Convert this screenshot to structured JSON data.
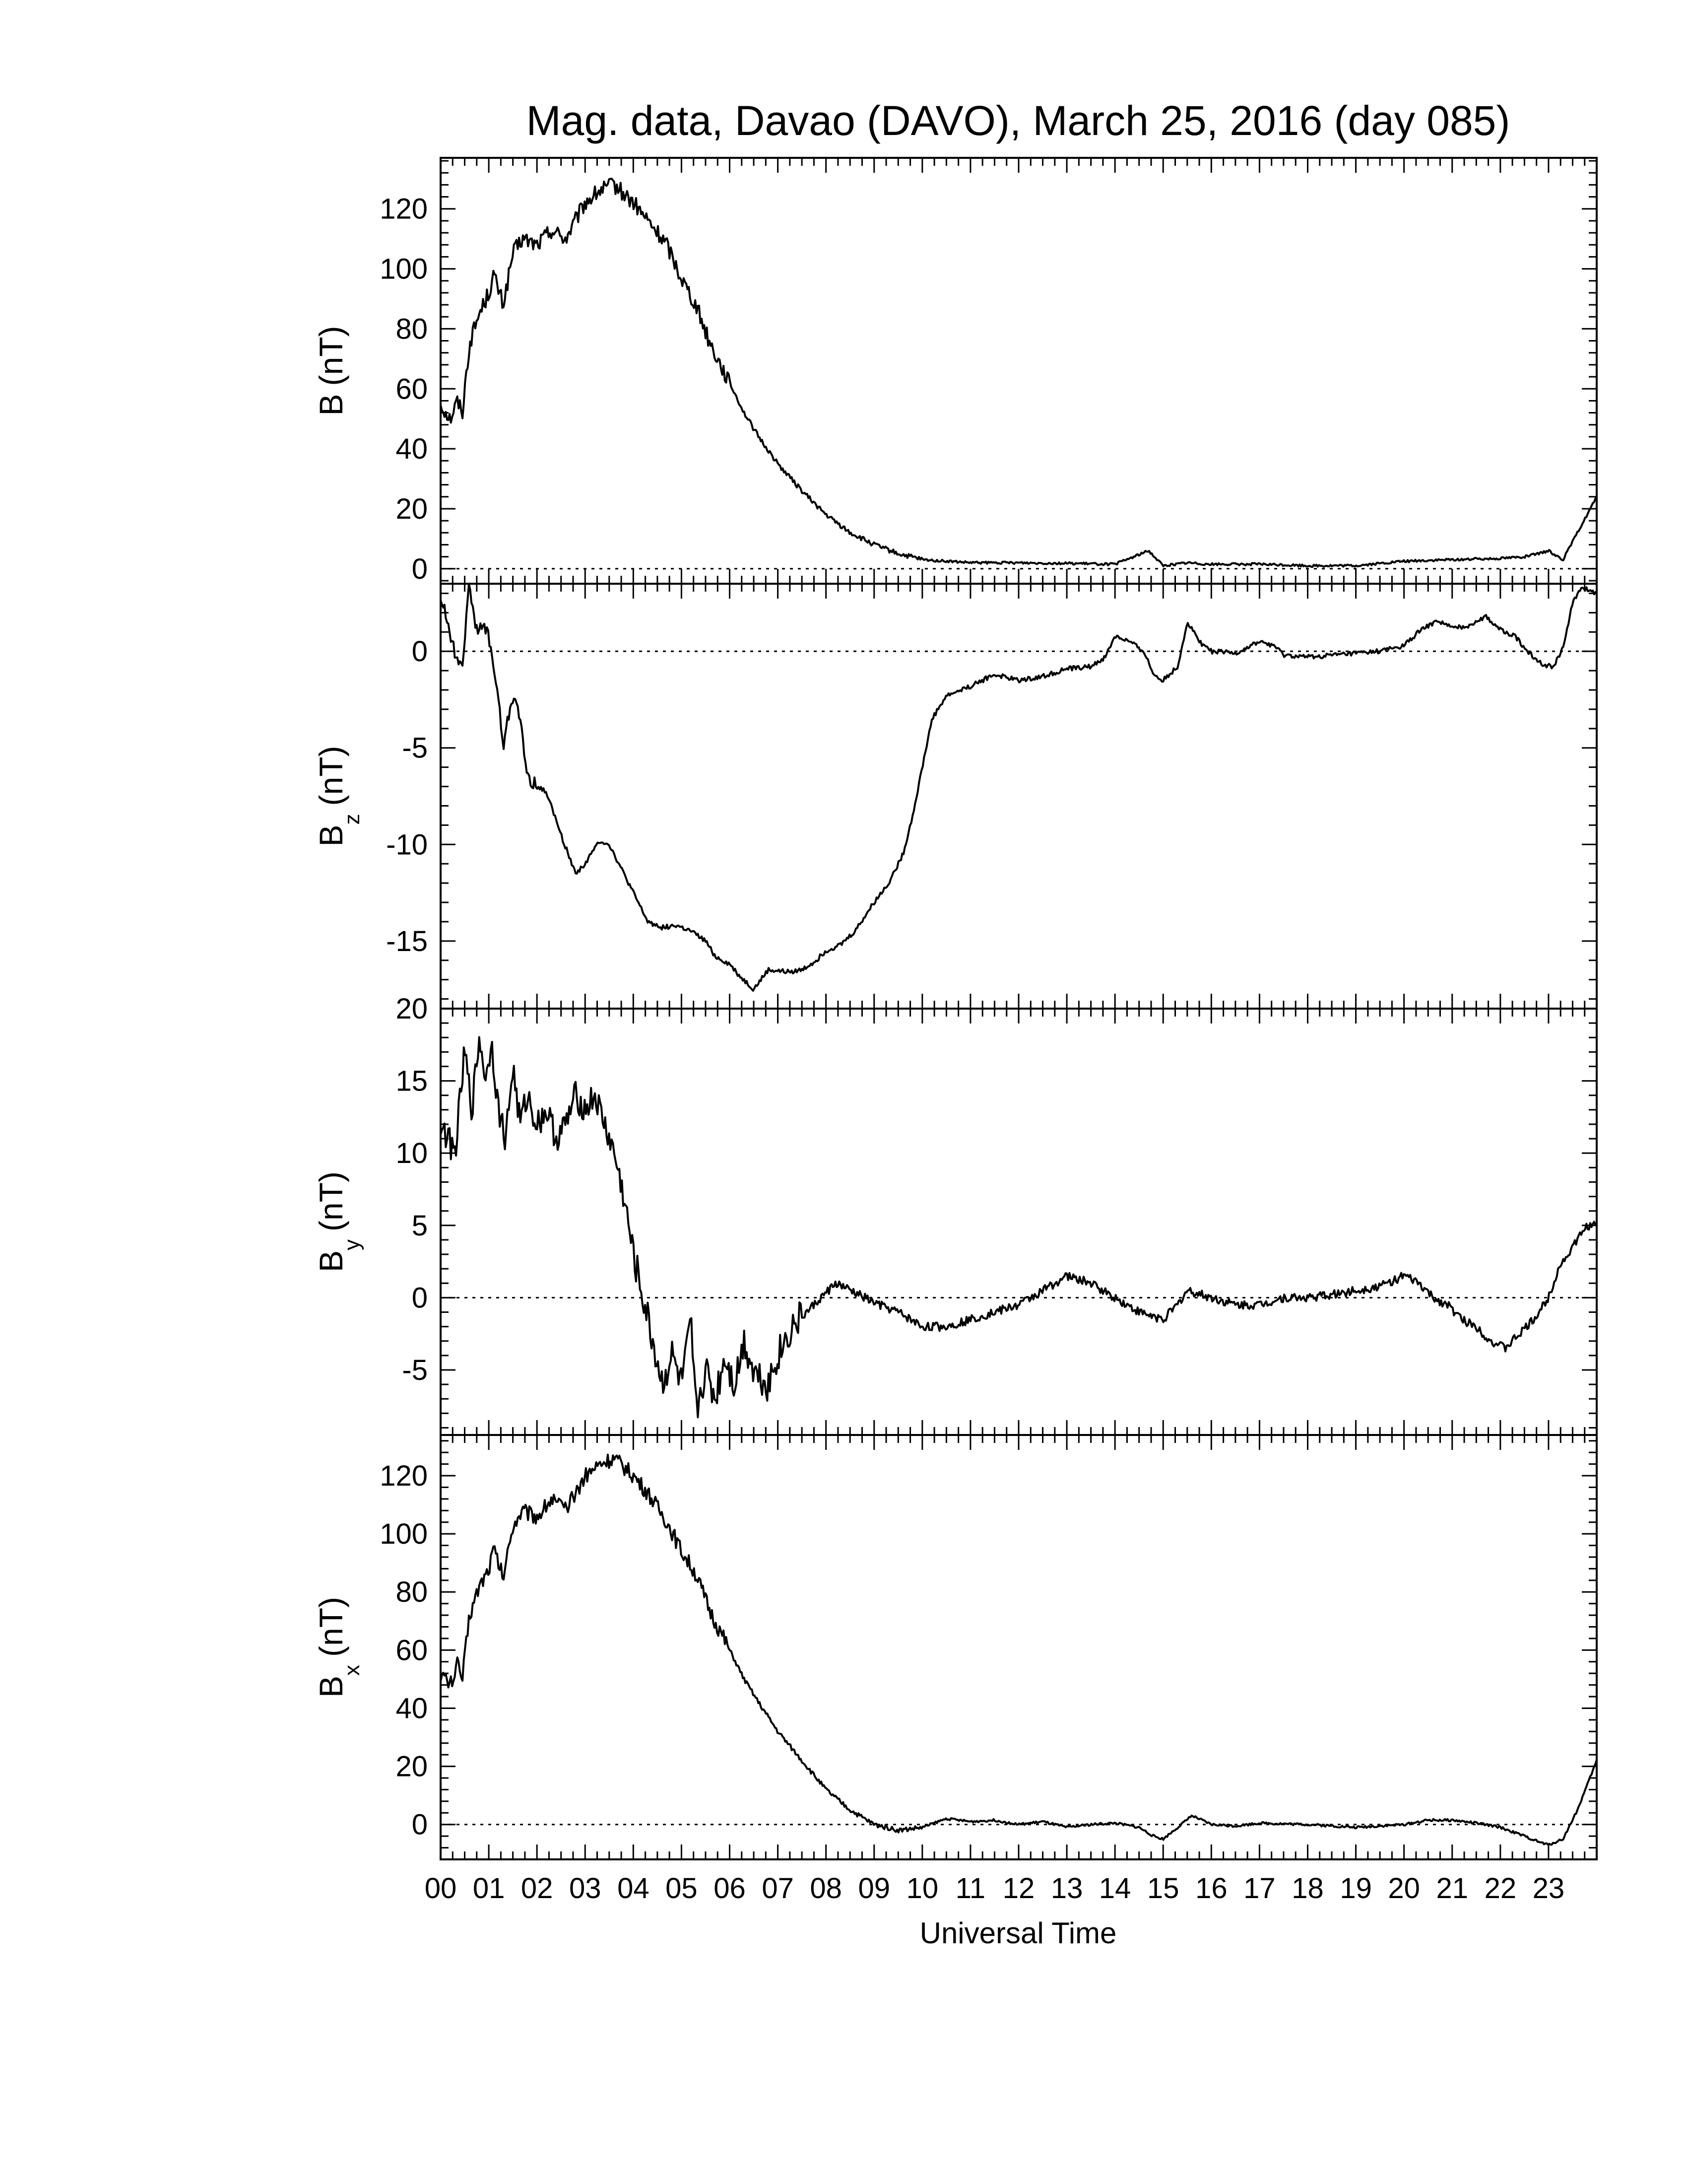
{
  "title": "Mag. data, Davao (DAVO), March 25, 2016 (day 085)",
  "xlabel": "Universal Time",
  "x_tick_labels": [
    "00",
    "01",
    "02",
    "03",
    "04",
    "05",
    "06",
    "07",
    "08",
    "09",
    "10",
    "11",
    "12",
    "13",
    "14",
    "15",
    "16",
    "17",
    "18",
    "19",
    "20",
    "21",
    "22",
    "23"
  ],
  "style": {
    "line_color": "#000000",
    "background": "#ffffff",
    "zero_line": "dotted"
  },
  "chart_data": [
    {
      "type": "line",
      "ylabel": "B (nT)",
      "ylabel_main": "B",
      "ylabel_sub": "",
      "ylabel_unit": "(nT)",
      "xlim": [
        0,
        24
      ],
      "ylim": [
        -5,
        137
      ],
      "yticks": [
        0,
        20,
        40,
        60,
        80,
        100,
        120
      ],
      "ytick_labels": [
        "0",
        "20",
        "40",
        "60",
        "80",
        "100",
        "120"
      ],
      "zero_line": 0,
      "x": [
        0,
        0.2,
        0.35,
        0.45,
        0.6,
        0.8,
        1.0,
        1.1,
        1.3,
        1.5,
        1.7,
        2.0,
        2.3,
        2.6,
        3.0,
        3.3,
        3.6,
        4.0,
        4.3,
        4.7,
        5.0,
        5.3,
        5.6,
        6.0,
        6.3,
        6.6,
        7.0,
        7.5,
        8.0,
        8.5,
        9.0,
        9.5,
        10.0,
        10.5,
        11.0,
        12.0,
        13.0,
        14.0,
        14.7,
        15.0,
        15.5,
        16.0,
        17.0,
        18.0,
        19.0,
        20.0,
        21.0,
        22.0,
        22.5,
        22.8,
        23.0,
        23.3,
        23.6,
        24.0
      ],
      "values": [
        55,
        50,
        56,
        52,
        75,
        85,
        92,
        98,
        88,
        105,
        110,
        108,
        113,
        110,
        122,
        126,
        128,
        122,
        116,
        108,
        97,
        88,
        75,
        62,
        52,
        44,
        35,
        26,
        18,
        12,
        8,
        5,
        3,
        2.5,
        2,
        2,
        1.8,
        1.5,
        6,
        1,
        2,
        1.5,
        1.5,
        1,
        1,
        2.5,
        3,
        3.5,
        4,
        5,
        6,
        3,
        12,
        24
      ]
    },
    {
      "type": "line",
      "ylabel": "Bz (nT)",
      "ylabel_main": "B",
      "ylabel_sub": "z",
      "ylabel_unit": "(nT)",
      "xlim": [
        0,
        24
      ],
      "ylim": [
        -18.5,
        3.5
      ],
      "yticks": [
        -15,
        -10,
        -5,
        0
      ],
      "ytick_labels": [
        "-15",
        "-10",
        "-5",
        "0"
      ],
      "zero_line": 0,
      "x": [
        0,
        0.15,
        0.3,
        0.45,
        0.6,
        0.75,
        0.9,
        1.0,
        1.2,
        1.3,
        1.45,
        1.55,
        1.7,
        1.8,
        2.0,
        2.2,
        2.5,
        2.8,
        3.0,
        3.3,
        3.5,
        3.8,
        4.1,
        4.3,
        4.6,
        4.9,
        5.2,
        5.5,
        5.7,
        6.0,
        6.2,
        6.5,
        6.8,
        7.2,
        7.5,
        7.8,
        8.0,
        8.3,
        8.6,
        9.0,
        9.3,
        9.6,
        9.8,
        10.0,
        10.2,
        10.5,
        11.0,
        11.5,
        12.0,
        12.5,
        13.0,
        13.5,
        13.8,
        14.0,
        14.3,
        14.6,
        14.8,
        15.0,
        15.3,
        15.5,
        15.8,
        16.0,
        16.5,
        17.0,
        17.3,
        17.5,
        18.0,
        18.5,
        19.0,
        19.5,
        20.0,
        20.3,
        20.7,
        21.0,
        21.3,
        21.7,
        22.0,
        22.3,
        22.6,
        22.9,
        23.1,
        23.3,
        23.5,
        23.7,
        24.0
      ],
      "values": [
        2.8,
        1.5,
        -0.2,
        -0.6,
        3.5,
        1.0,
        1.3,
        0.8,
        -2.5,
        -5.0,
        -2.8,
        -2.2,
        -4.5,
        -6.5,
        -7.0,
        -7.3,
        -9.5,
        -11.5,
        -11.0,
        -9.8,
        -10.0,
        -11.5,
        -13.0,
        -14.0,
        -14.3,
        -14.2,
        -14.5,
        -15.0,
        -15.8,
        -16.2,
        -16.8,
        -17.5,
        -16.5,
        -16.6,
        -16.5,
        -16.0,
        -15.5,
        -15.2,
        -14.5,
        -13.0,
        -12.0,
        -10.5,
        -8.5,
        -6.0,
        -3.5,
        -2.3,
        -1.8,
        -1.2,
        -1.5,
        -1.3,
        -0.9,
        -0.8,
        -0.3,
        0.8,
        0.5,
        0.0,
        -1.2,
        -1.5,
        -0.8,
        1.5,
        0.4,
        0.0,
        -0.1,
        0.5,
        0.3,
        -0.2,
        -0.3,
        -0.2,
        -0.1,
        0.0,
        0.3,
        1.0,
        1.6,
        1.2,
        1.3,
        1.8,
        1.1,
        0.8,
        -0.1,
        -0.7,
        -0.8,
        0.2,
        2.5,
        3.3,
        3.0
      ]
    },
    {
      "type": "line",
      "ylabel": "By (nT)",
      "ylabel_main": "B",
      "ylabel_sub": "y",
      "ylabel_unit": "(nT)",
      "xlim": [
        0,
        24
      ],
      "ylim": [
        -9.5,
        20
      ],
      "yticks": [
        -5,
        0,
        5,
        10,
        15,
        20
      ],
      "ytick_labels": [
        "-5",
        "0",
        "5",
        "10",
        "15",
        "20"
      ],
      "zero_line": 0,
      "x": [
        0,
        0.15,
        0.3,
        0.5,
        0.65,
        0.8,
        0.95,
        1.05,
        1.2,
        1.35,
        1.5,
        1.65,
        1.8,
        2.0,
        2.2,
        2.4,
        2.6,
        2.8,
        3.0,
        3.2,
        3.4,
        3.6,
        3.8,
        4.0,
        4.2,
        4.4,
        4.6,
        4.8,
        5.0,
        5.2,
        5.3,
        5.5,
        5.7,
        5.9,
        6.1,
        6.3,
        6.5,
        6.8,
        7.0,
        7.3,
        7.6,
        7.9,
        8.2,
        8.5,
        8.8,
        9.1,
        9.5,
        10.0,
        10.5,
        11.0,
        11.5,
        12.0,
        12.5,
        13.0,
        13.5,
        14.0,
        14.5,
        15.0,
        15.3,
        15.5,
        16.0,
        16.5,
        17.0,
        17.5,
        18.0,
        18.5,
        19.0,
        19.5,
        20.0,
        20.3,
        20.6,
        20.9,
        21.2,
        21.5,
        21.8,
        22.1,
        22.4,
        22.7,
        23.0,
        23.2,
        23.4,
        23.6,
        23.8,
        24.0
      ],
      "values": [
        12,
        11,
        10,
        17,
        13,
        18,
        15,
        18,
        13,
        11,
        16,
        12,
        14,
        12,
        13,
        11,
        12,
        14,
        13,
        14,
        12,
        10,
        7,
        3,
        0,
        -3,
        -6,
        -4,
        -6,
        -2,
        -8,
        -5,
        -7,
        -4,
        -6,
        -3,
        -5,
        -6,
        -4,
        -2,
        -1,
        0,
        1,
        0.5,
        0,
        -0.5,
        -1,
        -2,
        -2,
        -1.5,
        -1,
        -0.5,
        0.5,
        1.5,
        1,
        0,
        -1,
        -1.5,
        -0.5,
        0.5,
        0,
        -0.5,
        -0.5,
        0,
        0,
        0.2,
        0.5,
        0.8,
        1.5,
        1,
        0,
        -0.5,
        -1.5,
        -2,
        -3,
        -3.5,
        -2.5,
        -1.5,
        0,
        2,
        3,
        4,
        5,
        5
      ]
    },
    {
      "type": "line",
      "ylabel": "Bx (nT)",
      "ylabel_main": "B",
      "ylabel_sub": "x",
      "ylabel_unit": "(nT)",
      "xlim": [
        0,
        24
      ],
      "ylim": [
        -12,
        134
      ],
      "yticks": [
        0,
        20,
        40,
        60,
        80,
        100,
        120
      ],
      "ytick_labels": [
        "0",
        "20",
        "40",
        "60",
        "80",
        "100",
        "120"
      ],
      "zero_line": 0,
      "x": [
        0,
        0.2,
        0.35,
        0.45,
        0.6,
        0.8,
        1.0,
        1.1,
        1.3,
        1.5,
        1.7,
        2.0,
        2.3,
        2.6,
        3.0,
        3.3,
        3.6,
        4.0,
        4.3,
        4.7,
        5.0,
        5.3,
        5.6,
        6.0,
        6.3,
        6.6,
        7.0,
        7.5,
        8.0,
        8.5,
        9.0,
        9.5,
        10.0,
        10.5,
        11.0,
        11.5,
        12.0,
        12.5,
        13.0,
        13.5,
        14.0,
        14.5,
        14.8,
        15.0,
        15.3,
        15.6,
        16.0,
        16.5,
        17.0,
        18.0,
        19.0,
        20.0,
        20.5,
        21.0,
        21.5,
        22.0,
        22.5,
        22.8,
        23.0,
        23.3,
        23.6,
        24.0
      ],
      "values": [
        52,
        48,
        55,
        50,
        72,
        82,
        88,
        95,
        85,
        103,
        108,
        106,
        112,
        108,
        120,
        124,
        126,
        120,
        114,
        104,
        94,
        86,
        73,
        60,
        50,
        42,
        32,
        22,
        12,
        5,
        0,
        -2,
        -1,
        2,
        1,
        1.5,
        0,
        1,
        -1,
        0,
        0.5,
        -1,
        -4,
        -5,
        -1,
        3,
        0,
        -0.5,
        0.5,
        0,
        -1,
        0,
        1.5,
        1.5,
        0.5,
        -1,
        -4,
        -6,
        -7,
        -5,
        5,
        22
      ]
    }
  ]
}
